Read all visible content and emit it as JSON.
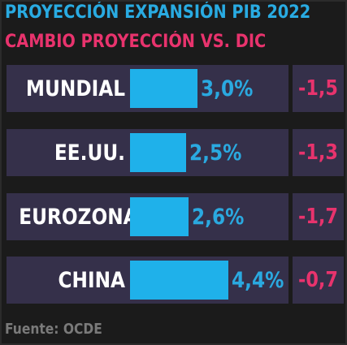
{
  "title": "PROYECCIÓN EXPANSIÓN PIB 2022",
  "subtitle": "CAMBIO PROYECCIÓN VS. DIC",
  "source": "Fuente: OCDE",
  "colors": {
    "title": "#29abe2",
    "subtitle": "#e8336d",
    "bar": "#1fb1ea",
    "panel": "#35304a",
    "label": "#ffffff",
    "change": "#e8336d",
    "source": "#7a7a7a"
  },
  "chart_data": {
    "type": "bar",
    "orientation": "horizontal",
    "title": "PROYECCIÓN EXPANSIÓN PIB 2022",
    "subtitle": "CAMBIO PROYECCIÓN VS. DIC",
    "categories": [
      "MUNDIAL",
      "EE.UU.",
      "EUROZONA",
      "CHINA"
    ],
    "values": [
      3.0,
      2.5,
      2.6,
      4.4
    ],
    "value_labels": [
      "3,0%",
      "2,5%",
      "2,6%",
      "4,4%"
    ],
    "changes": [
      -1.5,
      -1.3,
      -1.7,
      -0.7
    ],
    "change_labels": [
      "-1,5",
      "-1,3",
      "-1,7",
      "-0,7"
    ],
    "xlim": [
      0,
      5.5
    ],
    "grid": false,
    "legend": "none"
  }
}
